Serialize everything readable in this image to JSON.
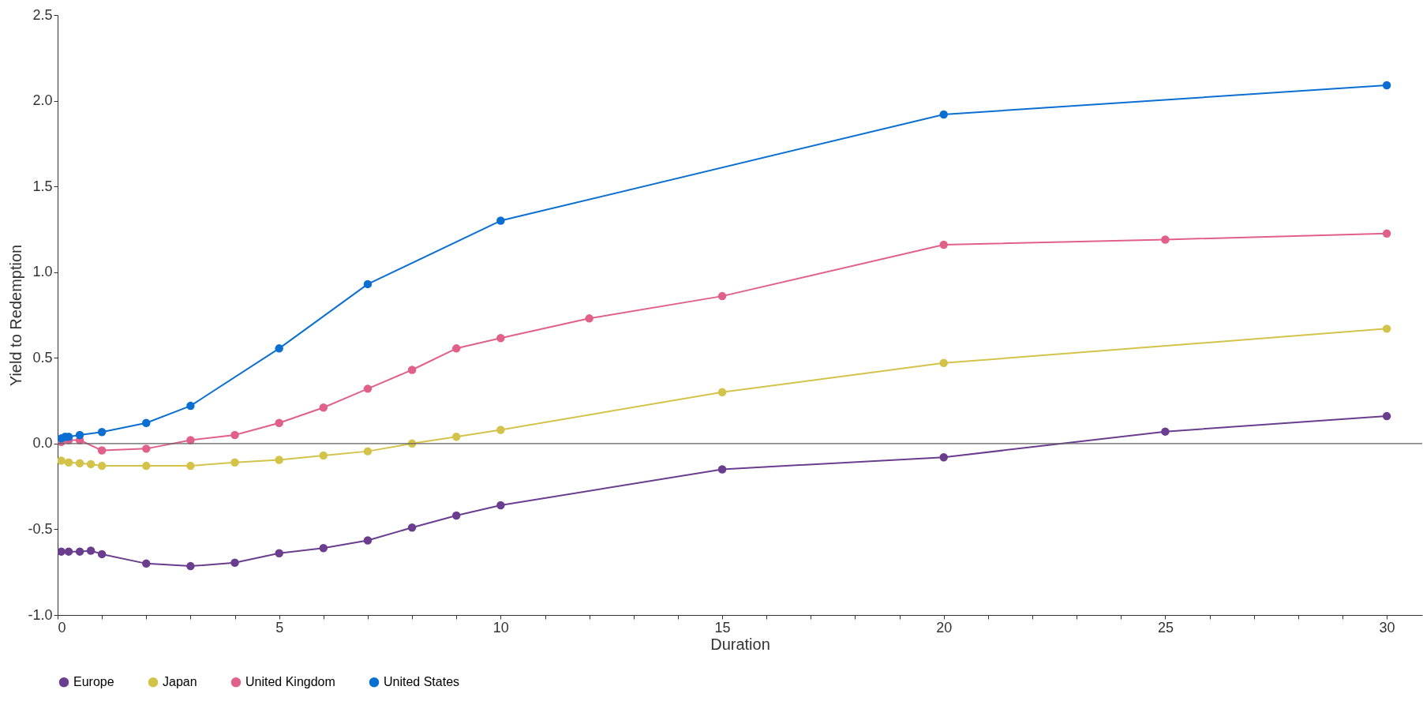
{
  "chart_data": {
    "type": "line",
    "xlabel": "Duration",
    "ylabel": "Yield to Redemption",
    "xlim": [
      0,
      30.8
    ],
    "ylim": [
      -1.0,
      2.5
    ],
    "xticks": [
      0,
      {
        "value": 1,
        "label": null
      },
      {
        "value": 2,
        "label": null
      },
      {
        "value": 3,
        "label": null
      },
      {
        "value": 4,
        "label": null
      },
      5,
      {
        "value": 6,
        "label": null
      },
      {
        "value": 7,
        "label": null
      },
      {
        "value": 8,
        "label": null
      },
      {
        "value": 9,
        "label": null
      },
      10,
      {
        "value": 11,
        "label": null
      },
      {
        "value": 12,
        "label": null
      },
      {
        "value": 13,
        "label": null
      },
      {
        "value": 14,
        "label": null
      },
      15,
      {
        "value": 16,
        "label": null
      },
      {
        "value": 17,
        "label": null
      },
      {
        "value": 18,
        "label": null
      },
      {
        "value": 19,
        "label": null
      },
      20,
      {
        "value": 21,
        "label": null
      },
      {
        "value": 22,
        "label": null
      },
      {
        "value": 23,
        "label": null
      },
      {
        "value": 24,
        "label": null
      },
      25,
      {
        "value": 26,
        "label": null
      },
      {
        "value": 27,
        "label": null
      },
      {
        "value": 28,
        "label": null
      },
      {
        "value": 29,
        "label": null
      },
      30
    ],
    "yticks": [
      {
        "value": -1.0,
        "label": "-1.0"
      },
      {
        "value": -0.5,
        "label": "-0.5"
      },
      {
        "value": 0,
        "label": "0.0"
      },
      {
        "value": 0.5,
        "label": "0.5"
      },
      {
        "value": 1.0,
        "label": "1.0"
      },
      {
        "value": 1.5,
        "label": "1.5"
      },
      {
        "value": 2.0,
        "label": "2.0"
      },
      {
        "value": 2.5,
        "label": "2.5"
      }
    ],
    "grid": false,
    "legend": "bottom left",
    "marker": "circle",
    "line_style": "solid",
    "ref_lines": [
      {
        "axis": "y",
        "value": 0,
        "color": "#606060"
      }
    ],
    "series": [
      {
        "name": "Europe",
        "color": "#6a3d8f",
        "x": [
          0.083,
          0.25,
          0.5,
          0.75,
          1,
          2,
          3,
          4,
          5,
          6,
          7,
          8,
          9,
          10,
          15,
          20,
          25,
          30
        ],
        "values": [
          -0.63,
          -0.63,
          -0.63,
          -0.625,
          -0.645,
          -0.7,
          -0.715,
          -0.695,
          -0.64,
          -0.61,
          -0.565,
          -0.49,
          -0.42,
          -0.36,
          -0.15,
          -0.08,
          0.07,
          0.16
        ]
      },
      {
        "name": "Japan",
        "color": "#d4c34a",
        "x": [
          0.083,
          0.25,
          0.5,
          0.75,
          1,
          2,
          3,
          4,
          5,
          6,
          7,
          8,
          9,
          10,
          15,
          20,
          30
        ],
        "values": [
          -0.1,
          -0.11,
          -0.115,
          -0.12,
          -0.13,
          -0.13,
          -0.13,
          -0.11,
          -0.095,
          -0.07,
          -0.045,
          0.0,
          0.04,
          0.08,
          0.3,
          0.47,
          0.67
        ]
      },
      {
        "name": "United Kingdom",
        "color": "#e0608a",
        "x": [
          0.083,
          0.25,
          0.5,
          1,
          2,
          3,
          4,
          5,
          6,
          7,
          8,
          9,
          10,
          12,
          15,
          20,
          25,
          30
        ],
        "values": [
          0.01,
          0.02,
          0.02,
          -0.04,
          -0.03,
          0.02,
          0.05,
          0.12,
          0.21,
          0.32,
          0.43,
          0.555,
          0.615,
          0.73,
          0.86,
          1.16,
          1.19,
          1.225
        ]
      },
      {
        "name": "United States",
        "color": "#0a6fd1",
        "x": [
          0.083,
          0.17,
          0.25,
          0.5,
          1,
          2,
          3,
          5,
          7,
          10,
          20,
          30
        ],
        "values": [
          0.03,
          0.04,
          0.04,
          0.05,
          0.067,
          0.12,
          0.22,
          0.555,
          0.93,
          1.3,
          1.92,
          2.09
        ]
      }
    ]
  }
}
